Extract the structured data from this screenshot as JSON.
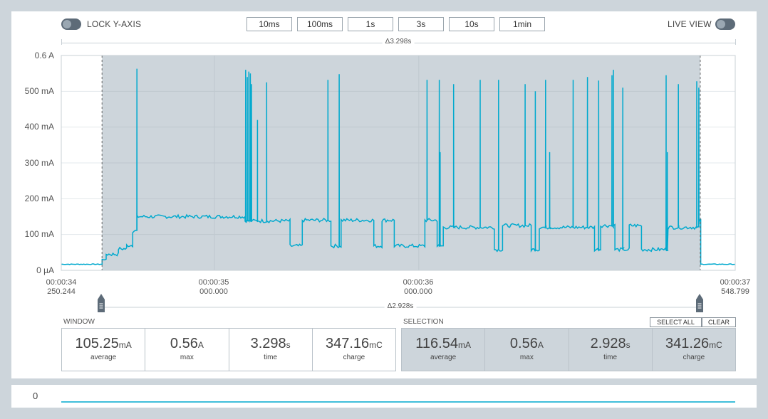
{
  "controls": {
    "lock_y_axis_label": "LOCK Y-AXIS",
    "live_view_label": "LIVE VIEW",
    "zoom_buttons": [
      "10ms",
      "100ms",
      "1s",
      "3s",
      "10s",
      "1min"
    ]
  },
  "window_delta": "Δ3.298s",
  "selection_delta": "Δ2.928s",
  "colors": {
    "trace": "#00a9ce",
    "selection": "#cdd5db",
    "background": "#cdd5db"
  },
  "chart_data": {
    "type": "line",
    "y_tick_labels": [
      "0.6 A",
      "500 mA",
      "400 mA",
      "300 mA",
      "200 mA",
      "100 mA",
      "0 µA"
    ],
    "y_ticks_mA": [
      600,
      500,
      400,
      300,
      200,
      100,
      0
    ],
    "ylim_mA": [
      0,
      600
    ],
    "xlim_s": [
      34.250244,
      37.548799
    ],
    "x_tick_labels": [
      {
        "time": "00:00:34",
        "sub": "250.244"
      },
      {
        "time": "00:00:35",
        "sub": "000.000"
      },
      {
        "time": "00:00:36",
        "sub": "000.000"
      },
      {
        "time": "00:00:37",
        "sub": "548.799"
      }
    ],
    "selection_s": [
      34.4497,
      37.3777
    ],
    "segments_mA": [
      {
        "x0": 34.2502,
        "x1": 34.45,
        "y": 17
      },
      {
        "x0": 34.45,
        "x1": 34.47,
        "y": 30
      },
      {
        "x0": 34.47,
        "x1": 34.53,
        "y": 45
      },
      {
        "x0": 34.53,
        "x1": 34.57,
        "y": 60
      },
      {
        "x0": 34.57,
        "x1": 34.6,
        "y": 70
      },
      {
        "x0": 34.6,
        "x1": 34.62,
        "y": 110
      },
      {
        "x0": 34.62,
        "x1": 35.15,
        "y": 150
      },
      {
        "x0": 35.15,
        "x1": 35.37,
        "y": 138
      },
      {
        "x0": 35.37,
        "x1": 35.43,
        "y": 68
      },
      {
        "x0": 35.43,
        "x1": 35.57,
        "y": 140
      },
      {
        "x0": 35.57,
        "x1": 35.62,
        "y": 68
      },
      {
        "x0": 35.62,
        "x1": 35.78,
        "y": 140
      },
      {
        "x0": 35.78,
        "x1": 35.82,
        "y": 68
      },
      {
        "x0": 35.82,
        "x1": 35.88,
        "y": 140
      },
      {
        "x0": 35.88,
        "x1": 36.03,
        "y": 68
      },
      {
        "x0": 36.03,
        "x1": 36.09,
        "y": 140
      },
      {
        "x0": 36.09,
        "x1": 36.12,
        "y": 68
      },
      {
        "x0": 36.12,
        "x1": 36.37,
        "y": 120
      },
      {
        "x0": 36.37,
        "x1": 36.41,
        "y": 58
      },
      {
        "x0": 36.41,
        "x1": 36.55,
        "y": 125
      },
      {
        "x0": 36.55,
        "x1": 36.59,
        "y": 58
      },
      {
        "x0": 36.59,
        "x1": 36.86,
        "y": 120
      },
      {
        "x0": 36.86,
        "x1": 36.89,
        "y": 58
      },
      {
        "x0": 36.89,
        "x1": 36.96,
        "y": 125
      },
      {
        "x0": 36.96,
        "x1": 37.03,
        "y": 58
      },
      {
        "x0": 37.03,
        "x1": 37.09,
        "y": 125
      },
      {
        "x0": 37.09,
        "x1": 37.22,
        "y": 58
      },
      {
        "x0": 37.22,
        "x1": 37.37,
        "y": 120
      },
      {
        "x0": 37.37,
        "x1": 37.38,
        "y": 140
      },
      {
        "x0": 37.38,
        "x1": 37.5488,
        "y": 17
      }
    ],
    "spikes_mA": [
      {
        "x": 34.62,
        "y": 563
      },
      {
        "x": 35.152,
        "y": 560
      },
      {
        "x": 35.16,
        "y": 540
      },
      {
        "x": 35.168,
        "y": 555
      },
      {
        "x": 35.175,
        "y": 550
      },
      {
        "x": 35.181,
        "y": 520
      },
      {
        "x": 35.21,
        "y": 420
      },
      {
        "x": 35.255,
        "y": 525
      },
      {
        "x": 35.555,
        "y": 532
      },
      {
        "x": 35.61,
        "y": 548
      },
      {
        "x": 36.04,
        "y": 532
      },
      {
        "x": 36.1,
        "y": 532
      },
      {
        "x": 36.104,
        "y": 330
      },
      {
        "x": 36.17,
        "y": 520
      },
      {
        "x": 36.3,
        "y": 532
      },
      {
        "x": 36.39,
        "y": 532
      },
      {
        "x": 36.52,
        "y": 520
      },
      {
        "x": 36.57,
        "y": 500
      },
      {
        "x": 36.62,
        "y": 532
      },
      {
        "x": 36.64,
        "y": 330
      },
      {
        "x": 36.755,
        "y": 532
      },
      {
        "x": 36.825,
        "y": 540
      },
      {
        "x": 36.88,
        "y": 530
      },
      {
        "x": 36.945,
        "y": 545
      },
      {
        "x": 36.952,
        "y": 560
      },
      {
        "x": 36.998,
        "y": 510
      },
      {
        "x": 37.21,
        "y": 545
      },
      {
        "x": 37.216,
        "y": 330
      },
      {
        "x": 37.27,
        "y": 520
      },
      {
        "x": 37.36,
        "y": 528
      },
      {
        "x": 37.37,
        "y": 510
      }
    ]
  },
  "window_stats": {
    "title": "WINDOW",
    "items": [
      {
        "value": "105.25",
        "unit": "mA",
        "label": "average"
      },
      {
        "value": "0.56",
        "unit": "A",
        "label": "max"
      },
      {
        "value": "3.298",
        "unit": "s",
        "label": "time"
      },
      {
        "value": "347.16",
        "unit": "mC",
        "label": "charge"
      }
    ]
  },
  "selection_stats": {
    "title": "SELECTION",
    "select_all": "SELECT ALL",
    "clear": "CLEAR",
    "items": [
      {
        "value": "116.54",
        "unit": "mA",
        "label": "average"
      },
      {
        "value": "0.56",
        "unit": "A",
        "label": "max"
      },
      {
        "value": "2.928",
        "unit": "s",
        "label": "time"
      },
      {
        "value": "341.26",
        "unit": "mC",
        "label": "charge"
      }
    ]
  },
  "overview": {
    "zero_label": "0"
  }
}
